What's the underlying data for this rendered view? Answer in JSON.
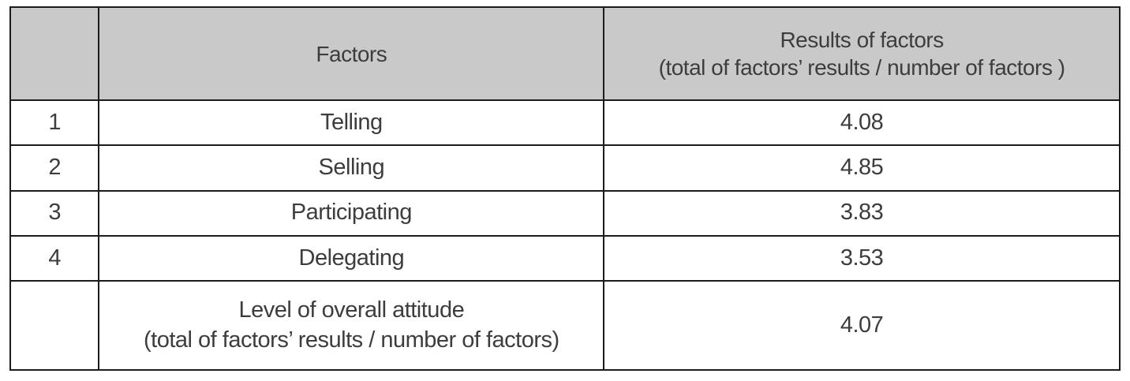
{
  "colors": {
    "header_bg": "#c9c9c9",
    "border": "#1c1c1c",
    "text": "#3d3d3d",
    "page_bg": "#ffffff"
  },
  "table": {
    "header": {
      "index_label": "",
      "factors_label": "Factors",
      "results_line1": "Results of factors",
      "results_line2": "(total of factors’ results / number of factors )"
    },
    "rows": [
      {
        "num": "1",
        "factor": "Telling",
        "result": "4.08"
      },
      {
        "num": "2",
        "factor": "Selling",
        "result": "4.85"
      },
      {
        "num": "3",
        "factor": "Participating",
        "result": "3.83"
      },
      {
        "num": "4",
        "factor": "Delegating",
        "result": "3.53"
      }
    ],
    "summary": {
      "num": "",
      "factor_line1": "Level of overall attitude",
      "factor_line2": "(total of factors’ results / number of factors)",
      "result": "4.07"
    }
  },
  "chart_data": {
    "type": "table",
    "columns": [
      "",
      "Factors",
      "Results of factors (total of factors’ results / number of factors )"
    ],
    "rows": [
      [
        "1",
        "Telling",
        "4.08"
      ],
      [
        "2",
        "Selling",
        "4.85"
      ],
      [
        "3",
        "Participating",
        "3.83"
      ],
      [
        "4",
        "Delegating",
        "3.53"
      ],
      [
        "",
        "Level of overall attitude (total of factors’ results / number of factors)",
        "4.07"
      ]
    ],
    "values": [
      4.08,
      4.85,
      3.83,
      3.53
    ],
    "overall": 4.07,
    "title": "",
    "legend": "none",
    "grid": "table-borders"
  }
}
